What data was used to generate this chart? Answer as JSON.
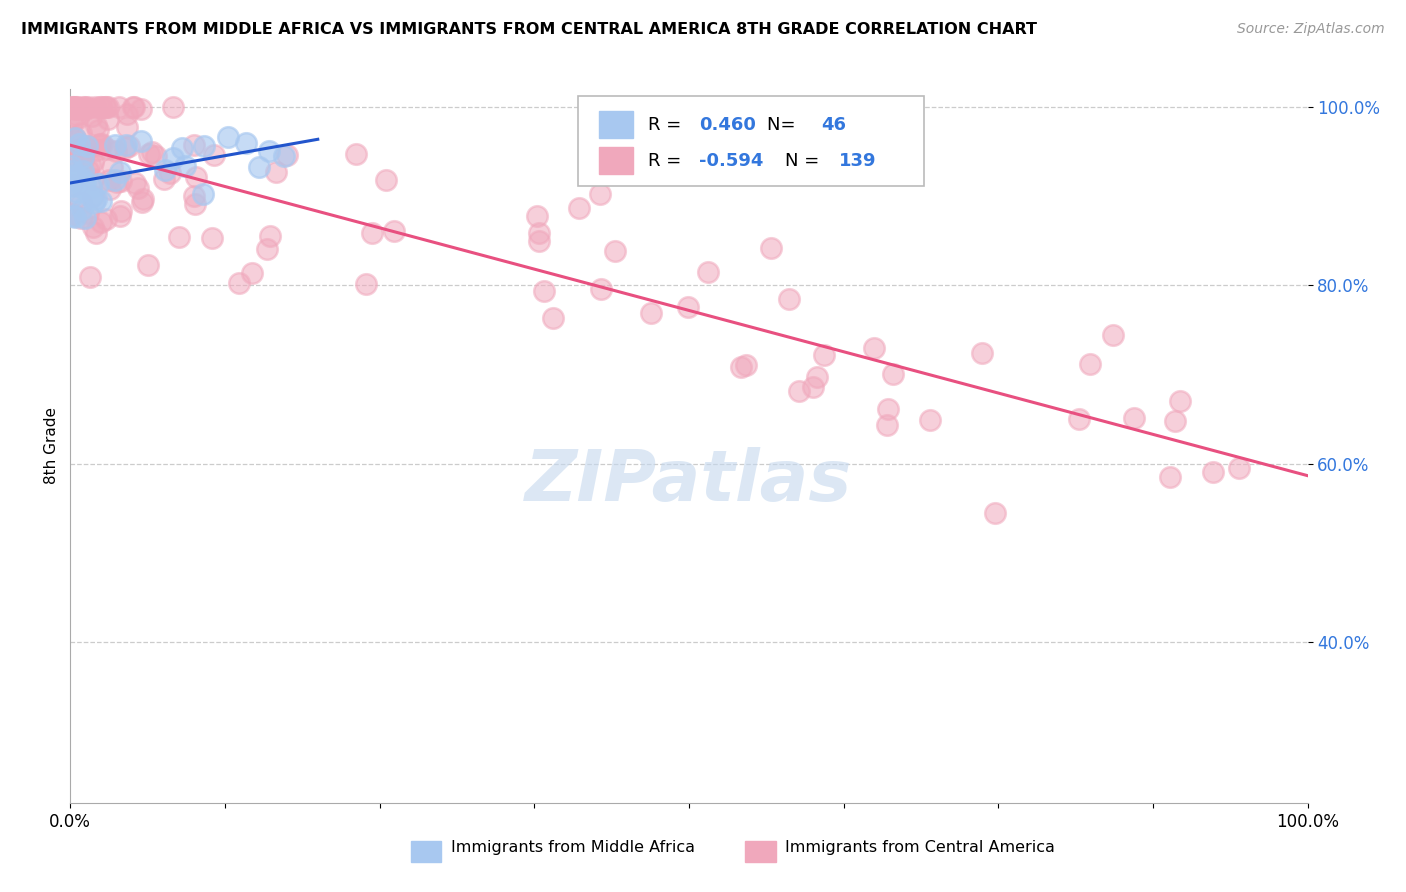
{
  "title": "IMMIGRANTS FROM MIDDLE AFRICA VS IMMIGRANTS FROM CENTRAL AMERICA 8TH GRADE CORRELATION CHART",
  "source": "Source: ZipAtlas.com",
  "ylabel": "8th Grade",
  "legend_bottom1": "Immigrants from Middle Africa",
  "legend_bottom2": "Immigrants from Central America",
  "blue_color": "#a8c8f0",
  "pink_color": "#f0a8bc",
  "blue_edge_color": "#a8c8f0",
  "pink_edge_color": "#f0a8bc",
  "blue_line_color": "#2255cc",
  "pink_line_color": "#e85080",
  "R_blue": 0.46,
  "N_blue": 46,
  "R_pink": -0.594,
  "N_pink": 139,
  "xlim": [
    0.0,
    1.0
  ],
  "ylim": [
    0.22,
    1.02
  ],
  "yticks": [
    0.4,
    0.6,
    0.8,
    1.0
  ],
  "ytick_labels": [
    "40.0%",
    "60.0%",
    "80.0%",
    "100.0%"
  ],
  "grid_color": "#cccccc",
  "watermark_color": "#c5d8ee",
  "title_fontsize": 11.5,
  "source_fontsize": 10,
  "tick_fontsize": 12,
  "legend_fontsize": 13,
  "ylabel_fontsize": 11
}
